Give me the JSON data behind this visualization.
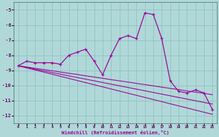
{
  "xlabel": "Windchill (Refroidissement éolien,°C)",
  "x": [
    0,
    1,
    2,
    3,
    4,
    5,
    6,
    7,
    8,
    9,
    10,
    11,
    12,
    13,
    14,
    15,
    16,
    17,
    18,
    19,
    20,
    21,
    22,
    23
  ],
  "y_main": [
    -8.7,
    -8.4,
    -8.5,
    -8.5,
    -8.5,
    -8.6,
    -8.0,
    -7.8,
    -7.6,
    -8.4,
    -9.3,
    -8.0,
    -6.9,
    -6.7,
    -6.9,
    -5.2,
    -5.3,
    -6.9,
    -9.7,
    -10.4,
    -10.5,
    -10.3,
    -10.5,
    -11.6
  ],
  "y_line1": [
    -8.7,
    -8.78,
    -8.87,
    -8.95,
    -9.03,
    -9.12,
    -9.2,
    -9.28,
    -9.37,
    -9.45,
    -9.53,
    -9.62,
    -9.7,
    -9.78,
    -9.87,
    -9.95,
    -10.03,
    -10.12,
    -10.2,
    -10.28,
    -10.37,
    -10.45,
    -10.53,
    -10.62
  ],
  "y_line2": [
    -8.7,
    -8.82,
    -8.93,
    -9.04,
    -9.15,
    -9.26,
    -9.37,
    -9.48,
    -9.59,
    -9.7,
    -9.81,
    -9.92,
    -10.03,
    -10.14,
    -10.25,
    -10.36,
    -10.47,
    -10.58,
    -10.69,
    -10.8,
    -10.91,
    -11.02,
    -11.13,
    -11.24
  ],
  "y_line3": [
    -8.7,
    -8.84,
    -8.98,
    -9.12,
    -9.26,
    -9.4,
    -9.54,
    -9.68,
    -9.82,
    -9.96,
    -10.1,
    -10.24,
    -10.38,
    -10.52,
    -10.66,
    -10.8,
    -10.94,
    -11.08,
    -11.22,
    -11.36,
    -11.5,
    -11.64,
    -11.78,
    -11.92
  ],
  "line_color": "#990099",
  "bg_color": "#b0d8d8",
  "grid_color": "#8abcbc",
  "ylim": [
    -12.5,
    -4.5
  ],
  "yticks": [
    -12,
    -11,
    -10,
    -9,
    -8,
    -7,
    -6,
    -5
  ],
  "xlim": [
    -0.5,
    23.5
  ],
  "xticks": [
    0,
    1,
    2,
    3,
    4,
    5,
    6,
    7,
    8,
    9,
    10,
    11,
    12,
    13,
    14,
    15,
    16,
    17,
    18,
    19,
    20,
    21,
    22,
    23
  ]
}
